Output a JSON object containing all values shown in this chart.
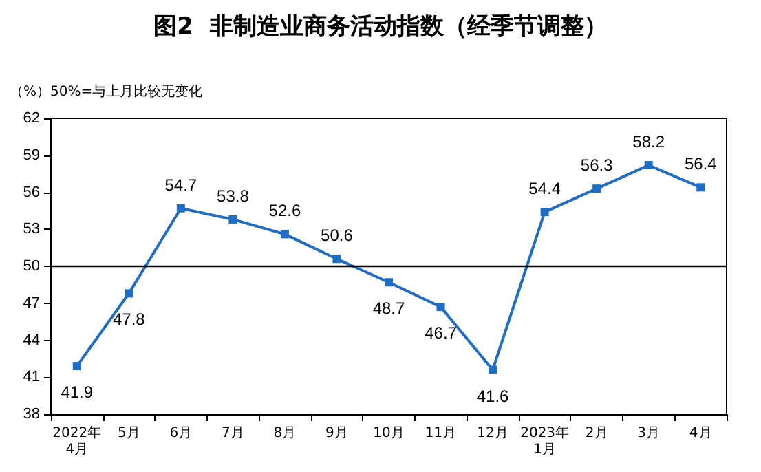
{
  "chart_data": {
    "type": "line",
    "title": "图2  非制造业商务活动指数（经季节调整）",
    "ylabel": "（%）50%=与上月比较无变化",
    "categories": [
      "2022年\n4月",
      "5月",
      "6月",
      "7月",
      "8月",
      "9月",
      "10月",
      "11月",
      "12月",
      "2023年\n1月",
      "2月",
      "3月",
      "4月"
    ],
    "series": [
      {
        "color": "#1f6dc4",
        "values": [
          41.9,
          47.8,
          54.7,
          53.8,
          52.6,
          50.6,
          48.7,
          46.7,
          41.6,
          54.4,
          56.3,
          58.2,
          56.4
        ]
      }
    ],
    "ylim": [
      38,
      62
    ],
    "yticks": [
      38,
      41,
      44,
      47,
      50,
      53,
      56,
      59,
      62
    ],
    "ref_lines": [
      {
        "axis": "y",
        "value": 50,
        "color": "#000000"
      }
    ],
    "data_labels": true,
    "marker": "square",
    "line_style": "solid"
  }
}
